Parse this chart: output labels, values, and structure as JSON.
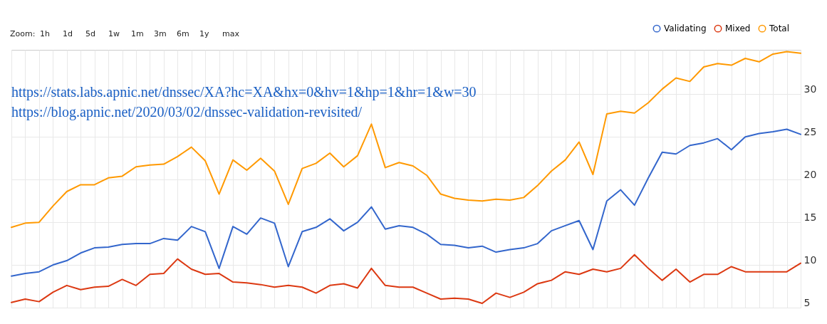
{
  "chart_data": {
    "type": "line",
    "categories": [
      null,
      null,
      null,
      null,
      null,
      null,
      null,
      null,
      null,
      null,
      null,
      null,
      null,
      null,
      null,
      null,
      null,
      null,
      null,
      null,
      null,
      null,
      null,
      null,
      null,
      null,
      null,
      null,
      null,
      null,
      null,
      null,
      null,
      null,
      null,
      null,
      null,
      null,
      null,
      null,
      null,
      null,
      null,
      null,
      null,
      null,
      null,
      null,
      null,
      null,
      null,
      null,
      null,
      null,
      null,
      null,
      null,
      null
    ],
    "series": [
      {
        "name": "Validating",
        "color": "#3366cc",
        "values": [
          8.7,
          9.0,
          9.2,
          10.0,
          10.5,
          11.4,
          12.0,
          12.1,
          12.4,
          12.5,
          12.5,
          13.1,
          12.9,
          14.5,
          13.9,
          9.6,
          14.5,
          13.6,
          15.5,
          14.9,
          9.8,
          13.9,
          14.4,
          15.4,
          14.0,
          15.0,
          16.8,
          14.2,
          14.6,
          14.4,
          13.6,
          12.4,
          12.3,
          12.0,
          12.2,
          11.5,
          11.8,
          12.0,
          12.5,
          14.0,
          14.6,
          15.2,
          11.8,
          17.5,
          18.8,
          17.0,
          20.2,
          23.2,
          23.0,
          24.0,
          24.3,
          24.8,
          23.5,
          25.0,
          25.4,
          25.6,
          25.9,
          25.3
        ]
      },
      {
        "name": "Mixed",
        "color": "#dc3912",
        "values": [
          5.6,
          6.0,
          5.7,
          6.8,
          7.6,
          7.1,
          7.4,
          7.5,
          8.3,
          7.6,
          8.9,
          9.0,
          10.7,
          9.5,
          8.9,
          9.0,
          8.0,
          7.9,
          7.7,
          7.4,
          7.6,
          7.4,
          6.7,
          7.6,
          7.8,
          7.3,
          9.6,
          7.6,
          7.4,
          7.4,
          6.7,
          6.0,
          6.1,
          6.0,
          5.5,
          6.7,
          6.2,
          6.8,
          7.8,
          8.2,
          9.2,
          8.9,
          9.5,
          9.2,
          9.6,
          11.2,
          9.6,
          8.2,
          9.5,
          8.0,
          8.9,
          8.9,
          9.8,
          9.2,
          9.2,
          9.2,
          9.2,
          10.2
        ]
      },
      {
        "name": "Total",
        "color": "#ff9900",
        "values": [
          14.4,
          14.9,
          15.0,
          16.9,
          18.6,
          19.4,
          19.4,
          20.2,
          20.4,
          21.5,
          21.7,
          21.8,
          22.7,
          23.8,
          22.2,
          18.3,
          22.3,
          21.1,
          22.5,
          21.0,
          17.1,
          21.3,
          21.9,
          23.1,
          21.5,
          22.8,
          26.5,
          21.4,
          22.0,
          21.6,
          20.5,
          18.3,
          17.8,
          17.6,
          17.5,
          17.7,
          17.6,
          17.9,
          19.3,
          21.0,
          22.3,
          24.4,
          20.6,
          27.7,
          28.0,
          27.8,
          29.0,
          30.6,
          31.9,
          31.5,
          33.2,
          33.6,
          33.4,
          34.2,
          33.8,
          34.7,
          35.0,
          34.8
        ]
      }
    ],
    "ylim": [
      5,
      35.2
    ],
    "yticks": [
      5,
      10,
      15,
      20,
      25,
      30
    ],
    "grid": true,
    "legend": "top right",
    "marker": "none",
    "line_style": "solid",
    "annotations": [
      "Zoom:",
      "1h",
      "1d",
      "5d",
      "1w",
      "1m",
      "3m",
      "6m",
      "1y",
      "max",
      "https://stats.labs.apnic.net/dnssec/XA?hc=XA&hx=0&hv=1&hp=1&hr=1&w=30",
      "https://blog.apnic.net/2020/03/02/dnssec-validation-revisited/"
    ]
  }
}
